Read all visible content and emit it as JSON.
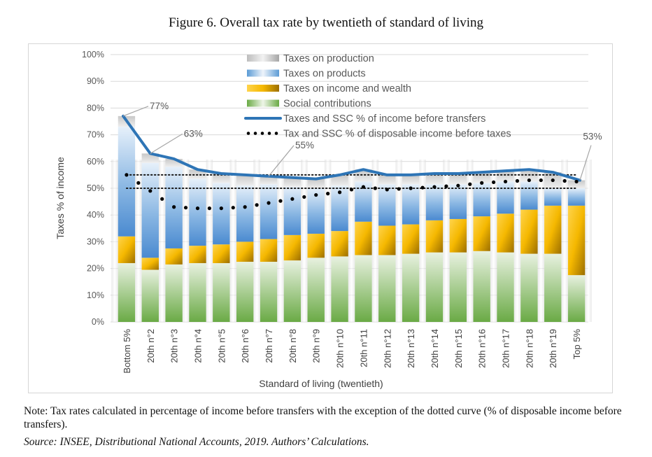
{
  "figure": {
    "title": "Figure 6. Overall tax rate by twentieth of standard of living",
    "note": "Note: Tax rates calculated in percentage of income before transfers with the exception of the dotted curve (% of disposable income before transfers).",
    "source": "Source: INSEE, Distributional National Accounts, 2019. Authors’ Calculations."
  },
  "chart_data": {
    "type": "bar",
    "stacked": true,
    "title": "Figure 6. Overall tax rate by twentieth of standard of living",
    "xlabel": "Standard of living (twentieth)",
    "ylabel": "Taxes % of income",
    "ylim": [
      0,
      100
    ],
    "yticks": [
      "0%",
      "10%",
      "20%",
      "30%",
      "40%",
      "50%",
      "60%",
      "70%",
      "80%",
      "90%",
      "100%"
    ],
    "grid": true,
    "legend_position": "top-center",
    "categories": [
      "Bottom  5%",
      "20th n°2",
      "20th n°3",
      "20th n°4",
      "20th n°5",
      "20th n°6",
      "20th n°7",
      "20th n°8",
      "20th n°9",
      "20th n°10",
      "20th n°11",
      "20th n°12",
      "20th n°13",
      "20th n°14",
      "20th n°15",
      "20th n°16",
      "20th n°17",
      "20th n°18",
      "20th n°19",
      "Top  5%"
    ],
    "series": [
      {
        "name": "Social contributions",
        "kind": "bar",
        "color": "#70ad47",
        "values": [
          22,
          19.5,
          21.5,
          22,
          22,
          22.5,
          22.5,
          23,
          24,
          24.5,
          25,
          25,
          25.5,
          26,
          26,
          26.5,
          26,
          25.5,
          25.5,
          17.5
        ]
      },
      {
        "name": "Taxes on income and wealth",
        "kind": "bar",
        "color": "#ffc000",
        "values": [
          10,
          4.5,
          6,
          6.5,
          7,
          7.5,
          8.5,
          9.5,
          9,
          9.5,
          12.5,
          11,
          11,
          12,
          12.5,
          13,
          14.5,
          16.5,
          18,
          26
        ]
      },
      {
        "name": "Taxes on products",
        "kind": "bar",
        "color": "#5b9bd5",
        "values": [
          41,
          35.5,
          30.5,
          25,
          23,
          21,
          20.5,
          18,
          17,
          17,
          15,
          15.5,
          15,
          13.5,
          13,
          12.5,
          12,
          10.5,
          6.5,
          6.5
        ]
      },
      {
        "name": "Taxes on production",
        "kind": "bar",
        "color": "#a5a5a5",
        "values": [
          4,
          3.5,
          3,
          3.5,
          3.5,
          4,
          3,
          3.5,
          3.5,
          4,
          4.5,
          3.5,
          3.5,
          4,
          4,
          4,
          4,
          4.5,
          6,
          3
        ]
      },
      {
        "name": "Taxes and SSC % of income before transfers",
        "kind": "line",
        "color": "#2e75b6",
        "values": [
          77,
          63,
          61,
          57,
          55.5,
          55,
          54.5,
          54,
          53.5,
          55,
          57,
          55,
          55,
          55.5,
          55.5,
          56,
          56.5,
          57,
          56,
          53
        ]
      },
      {
        "name": "Tax and SSC % of disposable income before taxes",
        "kind": "dotted-line",
        "color": "#000000",
        "values": [
          55,
          49,
          43,
          42.5,
          42.5,
          43,
          44.5,
          46,
          47.5,
          48.5,
          50.5,
          49.5,
          50,
          50.5,
          51,
          52,
          52.5,
          53,
          53,
          52.5
        ]
      }
    ],
    "reference_lines": [
      {
        "name": "dotted-reference-55",
        "value": 55,
        "style": "dotted"
      },
      {
        "name": "dotted-reference-50",
        "value": 50,
        "style": "dotted"
      }
    ],
    "annotations": [
      {
        "text": "77%",
        "category_index": 0,
        "series": "Taxes and SSC % of income before transfers"
      },
      {
        "text": "63%",
        "category_index": 1,
        "series": "Taxes and SSC % of income before transfers"
      },
      {
        "text": "55%",
        "category_index": 6,
        "series": "Taxes and SSC % of income before transfers"
      },
      {
        "text": "53%",
        "category_index": 19,
        "series": "Taxes and SSC % of income before transfers"
      }
    ],
    "legend_order": [
      "Taxes on production",
      "Taxes on products",
      "Taxes on income and wealth",
      "Social contributions",
      "Taxes and SSC % of income before transfers",
      "Tax and SSC % of disposable income before taxes"
    ]
  }
}
